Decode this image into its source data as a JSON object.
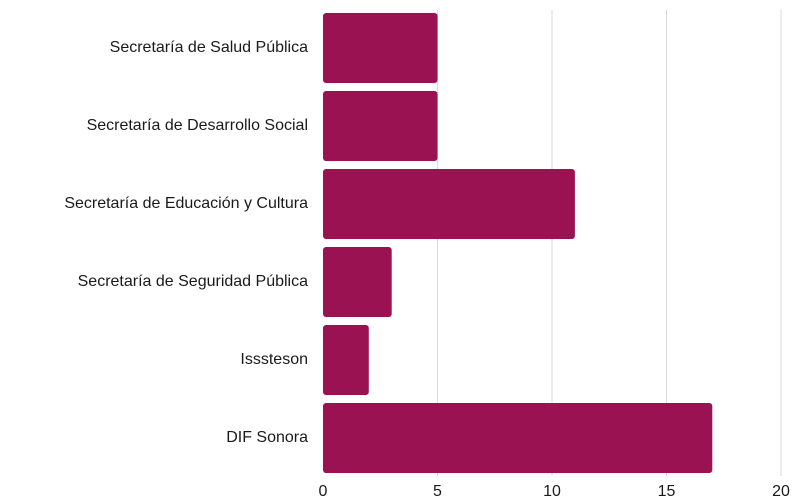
{
  "chart_data": {
    "type": "bar",
    "orientation": "horizontal",
    "categories": [
      "Secretaría de Salud Pública",
      "Secretaría de Desarrollo Social",
      "Secretaría de Educación y Cultura",
      "Secretaría de Seguridad Pública",
      "Isssteson",
      "DIF Sonora"
    ],
    "values": [
      5,
      5,
      11,
      3,
      2,
      17
    ],
    "xlim": [
      0,
      20
    ],
    "xticks": [
      0,
      5,
      10,
      15,
      20
    ],
    "grid": "vertical",
    "legend": "none",
    "bar_color": "#9a1252",
    "grid_color": "#d9d9d9"
  }
}
